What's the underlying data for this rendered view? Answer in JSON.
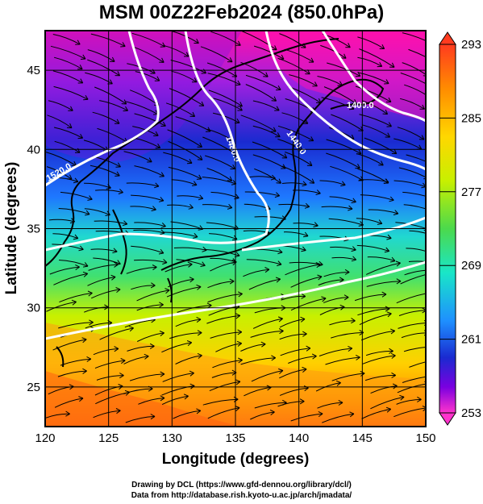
{
  "title": "MSM 00Z22Feb2024 (850.0hPa)",
  "map": {
    "x_axis_label": "Longitude (degrees)",
    "y_axis_label": "Latitude  (degrees)",
    "lon_range": [
      120,
      150
    ],
    "lat_range": [
      22.5,
      47.5
    ],
    "lon_ticks": [
      "120",
      "125",
      "130",
      "135",
      "140",
      "145",
      "150"
    ],
    "lat_ticks": [
      "25",
      "30",
      "35",
      "40",
      "45"
    ],
    "contour_labels": [
      "1400.0",
      "1440.0",
      "1480.0",
      "1520.0"
    ],
    "field": "temperature (K) shaded, streamlines, geopotential height contours"
  },
  "colorbar": {
    "ticks": [
      "293",
      "285",
      "277",
      "269",
      "261",
      "253"
    ],
    "colors": [
      "#ff3b1f",
      "#ff8c00",
      "#ffd700",
      "#c8f000",
      "#4cd94c",
      "#19e6c8",
      "#1e90ff",
      "#1a2ad0",
      "#7a00e0",
      "#ff33cc"
    ]
  },
  "credits": {
    "line1": "Drawing by DCL (https://www.gfd-dennou.org/library/dcl/)",
    "line2": "Data from http://database.rish.kyoto-u.ac.jp/arch/jmadata/"
  }
}
